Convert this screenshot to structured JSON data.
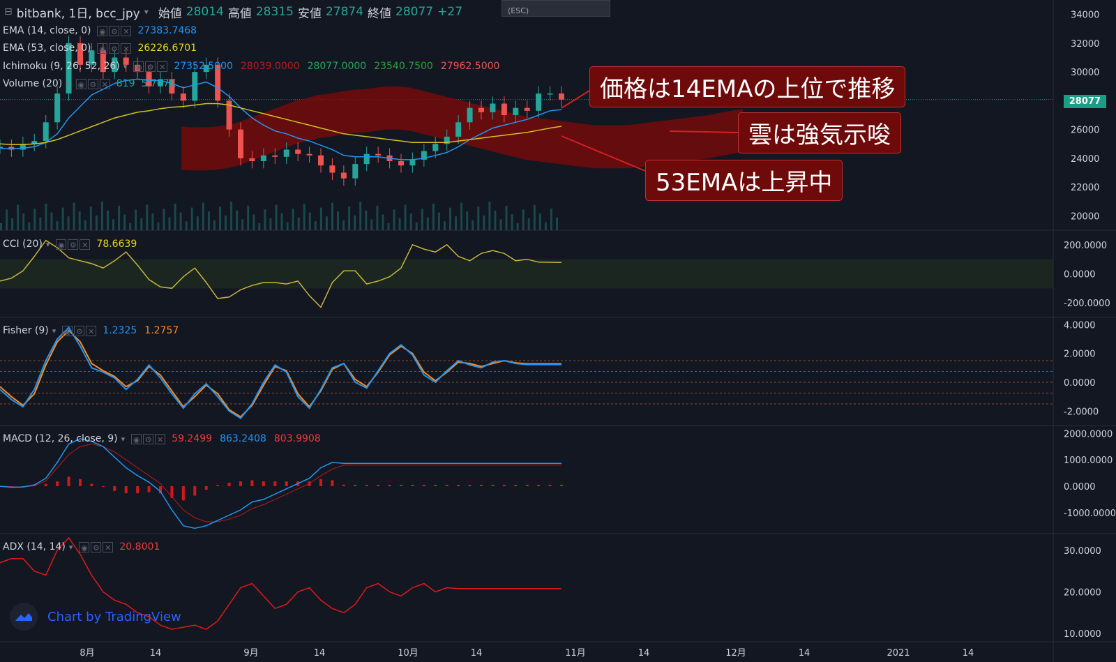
{
  "header": {
    "title": "bitbank, 1日, bcc_jpy",
    "open_label": "始値",
    "open": "28014",
    "high_label": "高値",
    "high": "28315",
    "low_label": "安値",
    "low": "27874",
    "close_label": "終値",
    "close": "28077",
    "change": "+27"
  },
  "overlay": {
    "esc": "(ESC)"
  },
  "indicators": {
    "ema14": {
      "label": "EMA (14, close, 0)",
      "value": "27383.7468"
    },
    "ema53": {
      "label": "EMA (53, close, 0)",
      "value": "26226.6701"
    },
    "ichimoku": {
      "label": "Ichimoku (9, 26, 52, 26)",
      "v1": "27352.5000",
      "v2": "28039.0000",
      "v3": "28077.0000",
      "v4": "23540.7500",
      "v5": "27962.5000"
    },
    "volume": {
      "label": "Volume (20)",
      "v1": "819",
      "v2": "5.707K"
    },
    "cci": {
      "label": "CCI (20)",
      "value": "78.6639"
    },
    "fisher": {
      "label": "Fisher (9)",
      "v1": "1.2325",
      "v2": "1.2757"
    },
    "macd": {
      "label": "MACD (12, 26, close, 9)",
      "v1": "59.2499",
      "v2": "863.2408",
      "v3": "803.9908"
    },
    "adx": {
      "label": "ADX (14, 14)",
      "value": "20.8001"
    }
  },
  "callouts": [
    "価格は14EMAの上位で推移",
    "雲は強気示唆",
    "53EMAは上昇中"
  ],
  "current_price": "28077",
  "logo": {
    "text": "Chart by TradingView"
  },
  "colors": {
    "bg": "#131722",
    "up": "#26a69a",
    "down": "#ef5350",
    "ema14": "#2196f3",
    "ema53": "#d4c21f",
    "cci": "#c8b53a",
    "fisher1": "#2196f3",
    "fisher2": "#ff8a1c",
    "adx": "#e0191a",
    "macd_hist": "#d01a1a"
  },
  "chart_data": [
    {
      "type": "line",
      "name": "price",
      "y_ticks": [
        "34000",
        "32000",
        "30000",
        "28000",
        "26000",
        "24000",
        "22000",
        "20000"
      ],
      "x_ticks": [
        "8月",
        "14",
        "9月",
        "14",
        "10月",
        "14",
        "11月",
        "14",
        "12月",
        "14",
        "2021",
        "14"
      ],
      "close": [
        24800,
        24600,
        25000,
        25200,
        26500,
        28500,
        32000,
        30500,
        31500,
        30000,
        31000,
        30500,
        30000,
        29000,
        29500,
        28500,
        28000,
        30000,
        30500,
        28000,
        26000,
        24000,
        23800,
        24200,
        24100,
        24600,
        24300,
        24200,
        23500,
        23000,
        22600,
        23600,
        24300,
        24200,
        23800,
        23500,
        23900,
        24500,
        25000,
        25500,
        26500,
        27500,
        27200,
        27800,
        27000,
        27500,
        27300,
        28500,
        28500,
        28077
      ],
      "ema14": [
        24700,
        24650,
        24700,
        24800,
        25100,
        25700,
        26800,
        27600,
        28400,
        28800,
        29200,
        29400,
        29500,
        29400,
        29400,
        29200,
        28900,
        29100,
        29300,
        28900,
        28300,
        27500,
        26800,
        26300,
        25900,
        25700,
        25400,
        25200,
        24900,
        24600,
        24200,
        24100,
        24100,
        24100,
        24000,
        23900,
        23900,
        24000,
        24200,
        24400,
        24800,
        25300,
        25700,
        26100,
        26300,
        26500,
        26700,
        27000,
        27300,
        27383
      ],
      "ema53": [
        25000,
        24950,
        24950,
        25000,
        25100,
        25300,
        25600,
        25900,
        26200,
        26500,
        26800,
        27000,
        27200,
        27300,
        27450,
        27550,
        27600,
        27700,
        27800,
        27800,
        27700,
        27500,
        27300,
        27100,
        26900,
        26700,
        26500,
        26300,
        26100,
        25900,
        25700,
        25600,
        25500,
        25400,
        25300,
        25200,
        25100,
        25100,
        25100,
        25100,
        25200,
        25300,
        25400,
        25500,
        25600,
        25700,
        25800,
        25950,
        26100,
        26226
      ]
    },
    {
      "type": "line",
      "name": "CCI (20)",
      "y_ticks": [
        "200.0000",
        "0.0000",
        "-200.0000"
      ],
      "values": [
        -50,
        -30,
        20,
        120,
        230,
        180,
        110,
        90,
        70,
        40,
        90,
        150,
        60,
        -40,
        -90,
        -100,
        -20,
        40,
        -60,
        -170,
        -160,
        -110,
        -80,
        -60,
        -60,
        -70,
        -50,
        -150,
        -230,
        -60,
        20,
        20,
        -70,
        -50,
        -20,
        40,
        200,
        170,
        150,
        200,
        120,
        90,
        140,
        160,
        140,
        90,
        100,
        80,
        79,
        78
      ]
    },
    {
      "type": "line",
      "name": "Fisher (9)",
      "y_ticks": [
        "4.0000",
        "2.0000",
        "0.0000",
        "-2.0000"
      ],
      "fisher": [
        -0.5,
        -1.2,
        -1.7,
        -0.5,
        1.5,
        3.0,
        3.8,
        2.5,
        1.0,
        0.7,
        0.3,
        -0.5,
        0.2,
        1.2,
        0.3,
        -0.8,
        -1.8,
        -0.8,
        -0.1,
        -1.0,
        -2.0,
        -2.5,
        -1.5,
        0.0,
        1.2,
        0.7,
        -1.0,
        -1.8,
        -0.5,
        1.0,
        1.3,
        0.0,
        -0.4,
        0.8,
        2.0,
        2.6,
        1.9,
        0.5,
        0.0,
        0.8,
        1.5,
        1.2,
        1.0,
        1.4,
        1.5,
        1.3,
        1.23,
        1.23,
        1.23,
        1.23
      ],
      "trigger": [
        -0.3,
        -1.0,
        -1.6,
        -0.8,
        1.2,
        2.8,
        3.6,
        2.8,
        1.3,
        0.8,
        0.4,
        -0.3,
        0.1,
        1.1,
        0.5,
        -0.6,
        -1.7,
        -1.0,
        -0.2,
        -0.8,
        -1.9,
        -2.4,
        -1.6,
        -0.2,
        1.1,
        0.8,
        -0.8,
        -1.7,
        -0.6,
        0.9,
        1.3,
        0.2,
        -0.3,
        0.7,
        1.9,
        2.5,
        2.0,
        0.7,
        0.1,
        0.7,
        1.4,
        1.3,
        1.1,
        1.3,
        1.5,
        1.35,
        1.28,
        1.28,
        1.28,
        1.28
      ]
    },
    {
      "type": "line",
      "name": "MACD (12, 26, close, 9)",
      "y_ticks": [
        "2000.0000",
        "1000.0000",
        "0.0000",
        "-1000.0000"
      ],
      "macd": [
        0,
        -40,
        -30,
        50,
        300,
        900,
        1600,
        1800,
        1700,
        1500,
        1100,
        700,
        400,
        150,
        -200,
        -900,
        -1500,
        -1600,
        -1500,
        -1300,
        -1100,
        -900,
        -600,
        -500,
        -300,
        -100,
        100,
        300,
        700,
        900,
        863,
        863,
        863,
        863,
        863,
        863,
        863,
        863,
        863,
        863,
        863,
        863,
        863,
        863,
        863,
        863,
        863,
        863,
        863,
        863
      ],
      "signal": [
        0,
        -20,
        -30,
        20,
        200,
        700,
        1200,
        1500,
        1600,
        1500,
        1300,
        1000,
        700,
        400,
        100,
        -400,
        -900,
        -1200,
        -1350,
        -1350,
        -1250,
        -1100,
        -850,
        -700,
        -500,
        -300,
        -100,
        100,
        400,
        650,
        800,
        804,
        804,
        804,
        804,
        804,
        804,
        804,
        804,
        804,
        804,
        804,
        804,
        804,
        804,
        804,
        804,
        804,
        804,
        804
      ]
    },
    {
      "type": "line",
      "name": "ADX (14, 14)",
      "y_ticks": [
        "30.0000",
        "20.0000",
        "10.0000"
      ],
      "values": [
        27,
        28,
        28,
        25,
        24,
        30,
        33,
        29,
        24,
        20,
        18,
        17,
        15,
        14,
        12,
        11,
        11.5,
        12,
        11,
        13,
        17,
        21,
        22,
        19,
        16,
        17,
        20,
        21,
        18,
        16,
        15,
        17,
        21,
        22,
        20,
        19,
        21,
        22,
        20,
        21,
        20.8,
        20.8,
        20.8,
        20.8,
        20.8,
        20.8,
        20.8,
        20.8,
        20.8,
        20.8
      ]
    }
  ]
}
